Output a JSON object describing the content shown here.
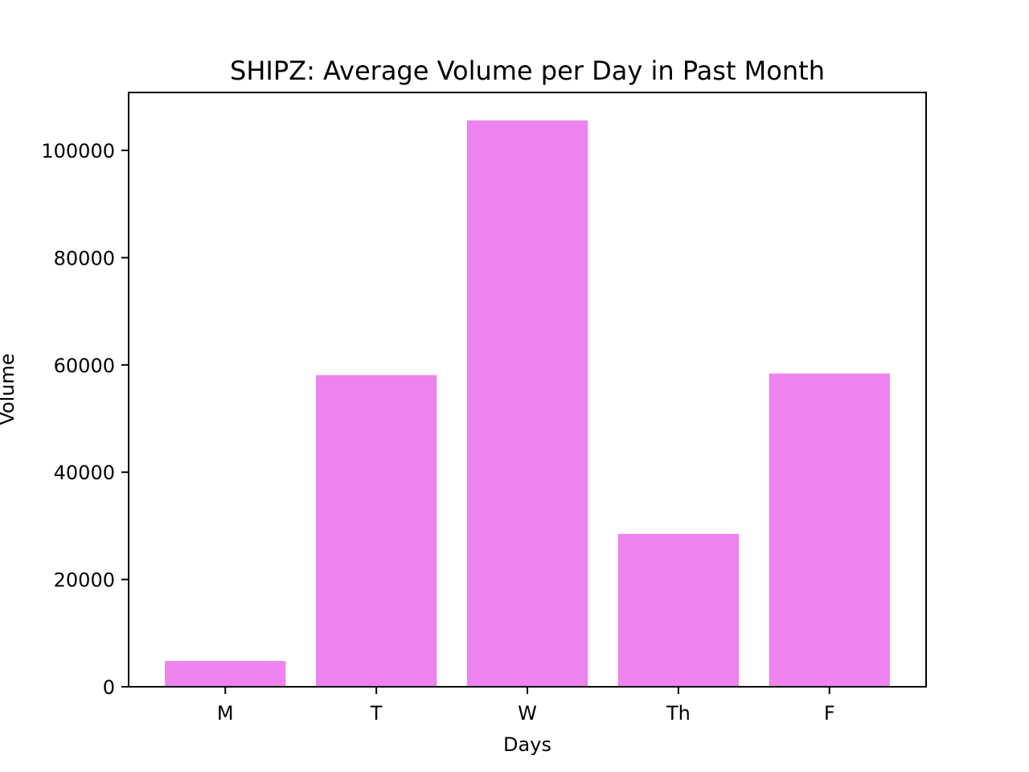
{
  "chart_data": {
    "type": "bar",
    "title": "SHIPZ: Average Volume per Day in Past Month",
    "xlabel": "Days",
    "ylabel": "Volume",
    "categories": [
      "M",
      "T",
      "W",
      "Th",
      "F"
    ],
    "values": [
      4800,
      58100,
      105600,
      28500,
      58400
    ],
    "ylim": [
      0,
      110800
    ],
    "yticks": [
      0,
      20000,
      40000,
      60000,
      80000,
      100000
    ],
    "grid": false,
    "legend": "none",
    "bar_color": "#ee82ee",
    "axis_color": "#000000"
  }
}
